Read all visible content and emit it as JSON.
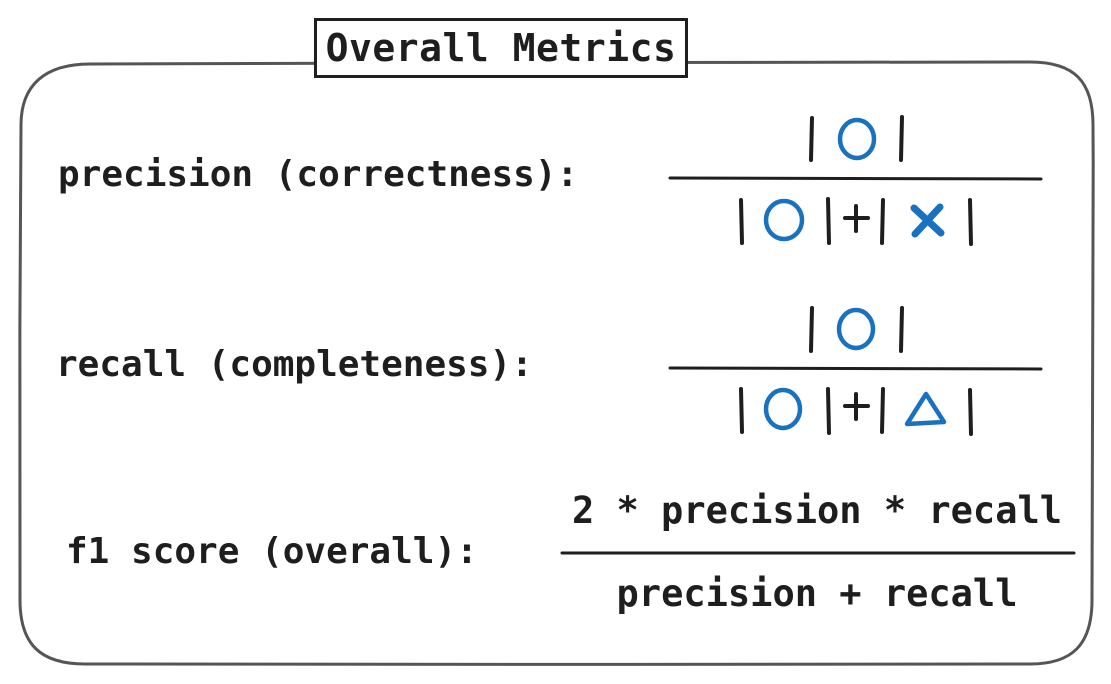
{
  "title": "Overall Metrics",
  "metrics": [
    {
      "label": "precision (correctness):",
      "numerator": [
        "circle"
      ],
      "denominator": [
        "circle",
        "cross"
      ],
      "operator": "+"
    },
    {
      "label": "recall (completeness):",
      "numerator": [
        "circle"
      ],
      "denominator": [
        "circle",
        "triangle"
      ],
      "operator": "+"
    },
    {
      "label": "f1 score (overall):",
      "numerator": "2 * precision * recall",
      "denominator": "precision + recall"
    }
  ],
  "colors": {
    "ink": "#1e1e1e",
    "symbol_blue": "#1971c2"
  },
  "symbols": {
    "true_positive": "circle-icon",
    "false_positive": "cross-icon",
    "false_negative": "triangle-icon"
  }
}
